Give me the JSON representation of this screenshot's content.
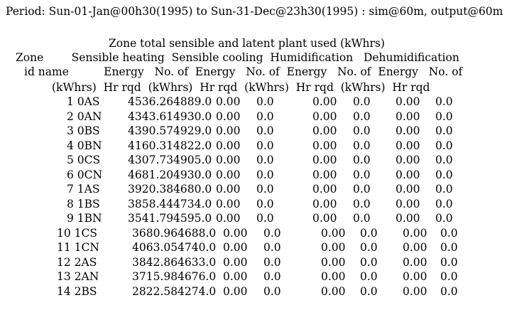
{
  "period_line": "Period: Sun-01-Jan@00h30(1995) to Sun-31-Dec@23h30(1995) : sim@60m, output@60m",
  "table": {
    "title": "Zone total sensible and latent plant used (kWhrs)",
    "header_line1": "Zone        Sensible heating  Sensible cooling  Humidification   Dehumidification",
    "header_line2": "id name          Energy   No. of  Energy   No. of  Energy   No. of  Energy   No. of",
    "header_line3": "(kWhrs)  Hr rqd  (kWhrs)  Hr rqd  (kWhrs)  Hr rqd  (kWhrs)  Hr rqd",
    "rows": [
      {
        "id_name": "1 0AS",
        "heat_energy": "4536.26",
        "heat_hr": "4889.0",
        "cool_energy": "0.00",
        "cool_hr": "0.0",
        "hum_energy": "0.00",
        "hum_hr": "0.0",
        "dehum_energy": "0.00",
        "dehum_hr": "0.0"
      },
      {
        "id_name": "2 0AN",
        "heat_energy": "4343.61",
        "heat_hr": "4930.0",
        "cool_energy": "0.00",
        "cool_hr": "0.0",
        "hum_energy": "0.00",
        "hum_hr": "0.0",
        "dehum_energy": "0.00",
        "dehum_hr": "0.0"
      },
      {
        "id_name": "3 0BS",
        "heat_energy": "4390.57",
        "heat_hr": "4929.0",
        "cool_energy": "0.00",
        "cool_hr": "0.0",
        "hum_energy": "0.00",
        "hum_hr": "0.0",
        "dehum_energy": "0.00",
        "dehum_hr": "0.0"
      },
      {
        "id_name": "4 0BN",
        "heat_energy": "4160.31",
        "heat_hr": "4822.0",
        "cool_energy": "0.00",
        "cool_hr": "0.0",
        "hum_energy": "0.00",
        "hum_hr": "0.0",
        "dehum_energy": "0.00",
        "dehum_hr": "0.0"
      },
      {
        "id_name": "5 0CS",
        "heat_energy": "4307.73",
        "heat_hr": "4905.0",
        "cool_energy": "0.00",
        "cool_hr": "0.0",
        "hum_energy": "0.00",
        "hum_hr": "0.0",
        "dehum_energy": "0.00",
        "dehum_hr": "0.0"
      },
      {
        "id_name": "6 0CN",
        "heat_energy": "4681.20",
        "heat_hr": "4930.0",
        "cool_energy": "0.00",
        "cool_hr": "0.0",
        "hum_energy": "0.00",
        "hum_hr": "0.0",
        "dehum_energy": "0.00",
        "dehum_hr": "0.0"
      },
      {
        "id_name": "7 1AS",
        "heat_energy": "3920.38",
        "heat_hr": "4680.0",
        "cool_energy": "0.00",
        "cool_hr": "0.0",
        "hum_energy": "0.00",
        "hum_hr": "0.0",
        "dehum_energy": "0.00",
        "dehum_hr": "0.0"
      },
      {
        "id_name": "8 1BS",
        "heat_energy": "3858.44",
        "heat_hr": "4734.0",
        "cool_energy": "0.00",
        "cool_hr": "0.0",
        "hum_energy": "0.00",
        "hum_hr": "0.0",
        "dehum_energy": "0.00",
        "dehum_hr": "0.0"
      },
      {
        "id_name": "9 1BN",
        "heat_energy": "3541.79",
        "heat_hr": "4595.0",
        "cool_energy": "0.00",
        "cool_hr": "0.0",
        "hum_energy": "0.00",
        "hum_hr": "0.0",
        "dehum_energy": "0.00",
        "dehum_hr": "0.0"
      },
      {
        "id_name": "10 1CS",
        "heat_energy": "3680.96",
        "heat_hr": "4688.0",
        "cool_energy": "0.00",
        "cool_hr": "0.0",
        "hum_energy": "0.00",
        "hum_hr": "0.0",
        "dehum_energy": "0.00",
        "dehum_hr": "0.0"
      },
      {
        "id_name": "11 1CN",
        "heat_energy": "4063.05",
        "heat_hr": "4740.0",
        "cool_energy": "0.00",
        "cool_hr": "0.0",
        "hum_energy": "0.00",
        "hum_hr": "0.0",
        "dehum_energy": "0.00",
        "dehum_hr": "0.0"
      },
      {
        "id_name": "12 2AS",
        "heat_energy": "3842.86",
        "heat_hr": "4633.0",
        "cool_energy": "0.00",
        "cool_hr": "0.0",
        "hum_energy": "0.00",
        "hum_hr": "0.0",
        "dehum_energy": "0.00",
        "dehum_hr": "0.0"
      },
      {
        "id_name": "13 2AN",
        "heat_energy": "3715.98",
        "heat_hr": "4676.0",
        "cool_energy": "0.00",
        "cool_hr": "0.0",
        "hum_energy": "0.00",
        "hum_hr": "0.0",
        "dehum_energy": "0.00",
        "dehum_hr": "0.0"
      },
      {
        "id_name": "14 2BS",
        "heat_energy": "2822.58",
        "heat_hr": "4274.0",
        "cool_energy": "0.00",
        "cool_hr": "0.0",
        "hum_energy": "0.00",
        "hum_hr": "0.0",
        "dehum_energy": "0.00",
        "dehum_hr": "0.0"
      }
    ]
  }
}
